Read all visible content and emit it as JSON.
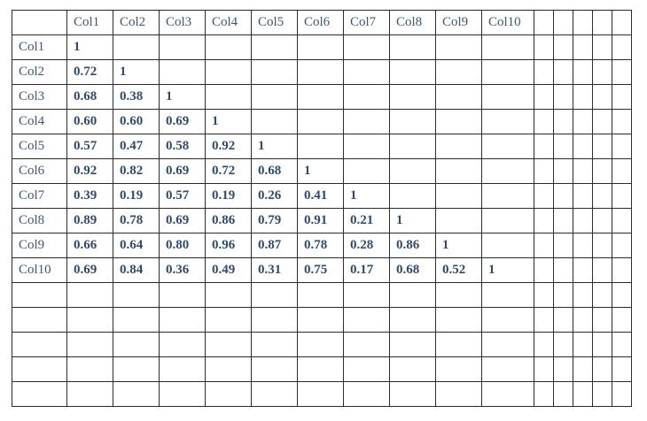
{
  "table": {
    "columns": [
      "Col1",
      "Col2",
      "Col3",
      "Col4",
      "Col5",
      "Col6",
      "Col7",
      "Col8",
      "Col9",
      "Col10"
    ],
    "rows": [
      {
        "label": "Col1",
        "values": [
          "1"
        ]
      },
      {
        "label": "Col2",
        "values": [
          "0.72",
          "1"
        ]
      },
      {
        "label": "Col3",
        "values": [
          "0.68",
          "0.38",
          "1"
        ]
      },
      {
        "label": "Col4",
        "values": [
          "0.60",
          "0.60",
          "0.69",
          "1"
        ]
      },
      {
        "label": "Col5",
        "values": [
          "0.57",
          "0.47",
          "0.58",
          "0.92",
          "1"
        ]
      },
      {
        "label": "Col6",
        "values": [
          "0.92",
          "0.82",
          "0.69",
          "0.72",
          "0.68",
          "1"
        ]
      },
      {
        "label": "Col7",
        "values": [
          "0.39",
          "0.19",
          "0.57",
          "0.19",
          "0.26",
          "0.41",
          "1"
        ]
      },
      {
        "label": "Col8",
        "values": [
          "0.89",
          "0.78",
          "0.69",
          "0.86",
          "0.79",
          "0.91",
          "0.21",
          "1"
        ]
      },
      {
        "label": "Col9",
        "values": [
          "0.66",
          "0.64",
          "0.80",
          "0.96",
          "0.87",
          "0.78",
          "0.28",
          "0.86",
          "1"
        ]
      },
      {
        "label": "Col10",
        "values": [
          "0.69",
          "0.84",
          "0.36",
          "0.49",
          "0.31",
          "0.75",
          "0.17",
          "0.68",
          "0.52",
          "1"
        ]
      }
    ]
  }
}
